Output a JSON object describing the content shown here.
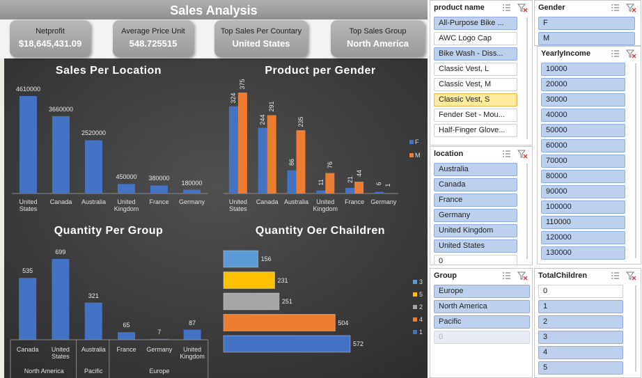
{
  "title": "Sales Analysis",
  "kpis": [
    {
      "label": "Netprofit",
      "value": "$18,645,431.09"
    },
    {
      "label": "Average Price Unit",
      "value": "548.725515"
    },
    {
      "label": "Top Sales Per Countary",
      "value": "United States"
    },
    {
      "label": "Top Sales Group",
      "value": "North America"
    }
  ],
  "chart_data": [
    {
      "type": "bar",
      "title": "Sales Per Location",
      "categories": [
        "United States",
        "Canada",
        "Australia",
        "United Kingdom",
        "France",
        "Germany"
      ],
      "values": [
        4610000,
        3660000,
        2520000,
        450000,
        380000,
        180000
      ],
      "color": "#4472c4"
    },
    {
      "type": "bar",
      "title": "Product per Gender",
      "categories": [
        "United States",
        "Canada",
        "Australia",
        "United Kingdom",
        "France",
        "Germany"
      ],
      "series": [
        {
          "name": "F",
          "color": "#4472c4",
          "values": [
            324,
            244,
            86,
            11,
            21,
            6
          ]
        },
        {
          "name": "M",
          "color": "#ed7d31",
          "values": [
            375,
            291,
            235,
            76,
            44,
            1
          ]
        }
      ]
    },
    {
      "type": "bar",
      "title": "Quantity Per Group",
      "color": "#4472c4",
      "groups": [
        {
          "name": "North America",
          "categories": [
            "Canada",
            "United States"
          ],
          "values": [
            535,
            699
          ]
        },
        {
          "name": "Pacific",
          "categories": [
            "Australia"
          ],
          "values": [
            321
          ]
        },
        {
          "name": "Europe",
          "categories": [
            "France",
            "Germany",
            "United Kingdom"
          ],
          "values": [
            65,
            7,
            87
          ]
        }
      ]
    },
    {
      "type": "bar",
      "horizontal": true,
      "title": "Quantity Oer Chaildren",
      "categories": [
        "3",
        "5",
        "2",
        "4",
        "1"
      ],
      "values": [
        156,
        231,
        251,
        504,
        572
      ],
      "colors": [
        "#5b9bd5",
        "#ffc000",
        "#a5a5a5",
        "#ed7d31",
        "#4472c4"
      ]
    }
  ],
  "slicers": [
    {
      "title": "product name",
      "items": [
        {
          "label": "All-Purpose Bike ...",
          "state": "selected"
        },
        {
          "label": "AWC Logo Cap",
          "state": "unselected"
        },
        {
          "label": "Bike Wash - Diss...",
          "state": "selected"
        },
        {
          "label": "Classic Vest, L",
          "state": "unselected"
        },
        {
          "label": "Classic Vest, M",
          "state": "unselected"
        },
        {
          "label": "Classic Vest, S",
          "state": "hover"
        },
        {
          "label": "Fender Set - Mou...",
          "state": "unselected"
        },
        {
          "label": "Half-Finger Glove...",
          "state": "unselected"
        }
      ]
    },
    {
      "title": "Gender",
      "items": [
        {
          "label": "F",
          "state": "selected"
        },
        {
          "label": "M",
          "state": "selected"
        }
      ]
    },
    {
      "title": "YearlyIncome",
      "items": [
        {
          "label": "10000",
          "state": "selected"
        },
        {
          "label": "20000",
          "state": "selected"
        },
        {
          "label": "30000",
          "state": "selected"
        },
        {
          "label": "40000",
          "state": "selected"
        },
        {
          "label": "50000",
          "state": "selected"
        },
        {
          "label": "60000",
          "state": "selected"
        },
        {
          "label": "70000",
          "state": "selected"
        },
        {
          "label": "80000",
          "state": "selected"
        },
        {
          "label": "90000",
          "state": "selected"
        },
        {
          "label": "100000",
          "state": "selected"
        },
        {
          "label": "110000",
          "state": "selected"
        },
        {
          "label": "120000",
          "state": "selected"
        },
        {
          "label": "130000",
          "state": "selected"
        }
      ]
    },
    {
      "title": "location",
      "items": [
        {
          "label": "Australia",
          "state": "selected"
        },
        {
          "label": "Canada",
          "state": "selected"
        },
        {
          "label": "France",
          "state": "selected"
        },
        {
          "label": "Germany",
          "state": "selected"
        },
        {
          "label": "United Kingdom",
          "state": "selected"
        },
        {
          "label": "United States",
          "state": "selected"
        },
        {
          "label": "0",
          "state": "unselected"
        }
      ]
    },
    {
      "title": "Group",
      "items": [
        {
          "label": "Europe",
          "state": "selected"
        },
        {
          "label": "North America",
          "state": "selected"
        },
        {
          "label": "Pacific",
          "state": "selected"
        },
        {
          "label": "0",
          "state": "disabled"
        }
      ]
    },
    {
      "title": "TotalChildren",
      "items": [
        {
          "label": "0",
          "state": "unselected"
        },
        {
          "label": "1",
          "state": "selected"
        },
        {
          "label": "2",
          "state": "selected"
        },
        {
          "label": "3",
          "state": "selected"
        },
        {
          "label": "4",
          "state": "selected"
        },
        {
          "label": "5",
          "state": "selected"
        }
      ]
    }
  ]
}
